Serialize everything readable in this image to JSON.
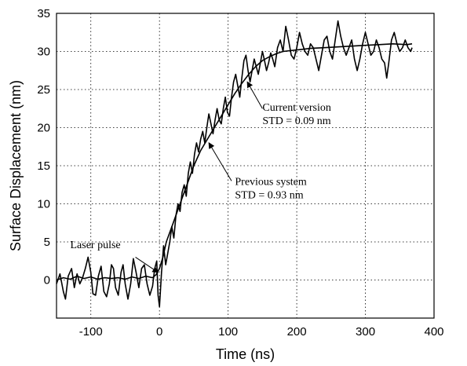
{
  "chart_data": {
    "type": "line",
    "title": "",
    "xlabel": "Time (ns)",
    "ylabel": "Surface Displacement (nm)",
    "xlim": [
      -150,
      400
    ],
    "ylim": [
      -5,
      35
    ],
    "xticks": [
      -100,
      0,
      100,
      200,
      300,
      400
    ],
    "yticks": [
      0,
      5,
      10,
      15,
      20,
      25,
      30,
      35
    ],
    "grid": true,
    "series": [
      {
        "values": [
          [
            -150,
            0
          ],
          [
            -140,
            0.3
          ],
          [
            -130,
            0.1
          ],
          [
            -120,
            0.5
          ],
          [
            -110,
            0.2
          ],
          [
            -100,
            0.4
          ],
          [
            -90,
            0.1
          ],
          [
            -80,
            0.3
          ],
          [
            -70,
            0.2
          ],
          [
            -60,
            0.3
          ],
          [
            -50,
            0.1
          ],
          [
            -40,
            0.4
          ],
          [
            -30,
            0.2
          ],
          [
            -20,
            0.5
          ],
          [
            -10,
            0.3
          ],
          [
            -5,
            0.7
          ],
          [
            0,
            1.5
          ],
          [
            5,
            3
          ],
          [
            10,
            5
          ],
          [
            20,
            7.5
          ],
          [
            30,
            10
          ],
          [
            40,
            12.5
          ],
          [
            50,
            15
          ],
          [
            60,
            17
          ],
          [
            70,
            18.5
          ],
          [
            80,
            20
          ],
          [
            90,
            21.5
          ],
          [
            100,
            23
          ],
          [
            110,
            24.5
          ],
          [
            120,
            25.8
          ],
          [
            130,
            27
          ],
          [
            140,
            28
          ],
          [
            150,
            28.8
          ],
          [
            160,
            29.3
          ],
          [
            170,
            29.7
          ],
          [
            180,
            30
          ],
          [
            200,
            30.2
          ],
          [
            220,
            30.4
          ],
          [
            240,
            30.5
          ],
          [
            260,
            30.6
          ],
          [
            280,
            30.7
          ],
          [
            300,
            30.8
          ],
          [
            320,
            30.9
          ],
          [
            340,
            31
          ],
          [
            360,
            30.9
          ],
          [
            368,
            31
          ]
        ]
      },
      {
        "values": [
          [
            -150,
            -0.5
          ],
          [
            -145,
            0.8
          ],
          [
            -140,
            -1.5
          ],
          [
            -137,
            -2.5
          ],
          [
            -133,
            0.5
          ],
          [
            -128,
            1.5
          ],
          [
            -124,
            -1.0
          ],
          [
            -120,
            0.8
          ],
          [
            -116,
            -0.5
          ],
          [
            -112,
            0.3
          ],
          [
            -108,
            1.5
          ],
          [
            -104,
            3.0
          ],
          [
            -100,
            1.0
          ],
          [
            -97,
            -1.8
          ],
          [
            -93,
            -2.0
          ],
          [
            -89,
            0.5
          ],
          [
            -85,
            1.8
          ],
          [
            -81,
            -1.5
          ],
          [
            -77,
            -2.2
          ],
          [
            -73,
            -0.5
          ],
          [
            -70,
            2.0
          ],
          [
            -67,
            1.5
          ],
          [
            -64,
            -1.0
          ],
          [
            -60,
            -2.0
          ],
          [
            -56,
            1.0
          ],
          [
            -53,
            2.0
          ],
          [
            -50,
            -0.5
          ],
          [
            -46,
            -2.5
          ],
          [
            -42,
            -0.5
          ],
          [
            -38,
            2.8
          ],
          [
            -34,
            1.0
          ],
          [
            -30,
            -1.0
          ],
          [
            -26,
            1.5
          ],
          [
            -22,
            2.0
          ],
          [
            -18,
            -0.5
          ],
          [
            -14,
            -2.0
          ],
          [
            -10,
            -0.8
          ],
          [
            -7,
            1.5
          ],
          [
            -4,
            2.5
          ],
          [
            -2,
            -2.0
          ],
          [
            0,
            -3.5
          ],
          [
            3,
            1.0
          ],
          [
            6,
            4.5
          ],
          [
            9,
            2.0
          ],
          [
            12,
            3.5
          ],
          [
            15,
            5.0
          ],
          [
            18,
            7.0
          ],
          [
            21,
            5.5
          ],
          [
            24,
            8.5
          ],
          [
            27,
            10.0
          ],
          [
            30,
            9.0
          ],
          [
            33,
            11.5
          ],
          [
            36,
            12.5
          ],
          [
            39,
            11.0
          ],
          [
            42,
            14.0
          ],
          [
            45,
            15.5
          ],
          [
            48,
            14.0
          ],
          [
            51,
            16.5
          ],
          [
            54,
            18.0
          ],
          [
            57,
            16.8
          ],
          [
            60,
            18.5
          ],
          [
            63,
            19.5
          ],
          [
            66,
            18.0
          ],
          [
            69,
            20.0
          ],
          [
            72,
            21.8
          ],
          [
            75,
            20.5
          ],
          [
            78,
            19.2
          ],
          [
            81,
            21.0
          ],
          [
            84,
            22.5
          ],
          [
            87,
            21.0
          ],
          [
            90,
            20.5
          ],
          [
            93,
            22.5
          ],
          [
            96,
            24.0
          ],
          [
            99,
            22.0
          ],
          [
            102,
            21.5
          ],
          [
            105,
            24.0
          ],
          [
            108,
            26.0
          ],
          [
            111,
            27.0
          ],
          [
            114,
            25.5
          ],
          [
            117,
            24.0
          ],
          [
            120,
            26.5
          ],
          [
            123,
            28.8
          ],
          [
            126,
            29.5
          ],
          [
            129,
            27.5
          ],
          [
            132,
            26.0
          ],
          [
            135,
            27.5
          ],
          [
            138,
            29.0
          ],
          [
            141,
            28.0
          ],
          [
            144,
            27.0
          ],
          [
            147,
            28.5
          ],
          [
            150,
            30.0
          ],
          [
            153,
            28.8
          ],
          [
            156,
            27.5
          ],
          [
            159,
            28.5
          ],
          [
            162,
            29.8
          ],
          [
            165,
            29.0
          ],
          [
            168,
            28.0
          ],
          [
            172,
            30.5
          ],
          [
            176,
            31.5
          ],
          [
            180,
            30.0
          ],
          [
            184,
            33.3
          ],
          [
            188,
            31.5
          ],
          [
            192,
            29.5
          ],
          [
            196,
            29.0
          ],
          [
            200,
            30.5
          ],
          [
            204,
            32.5
          ],
          [
            208,
            31.0
          ],
          [
            212,
            30.0
          ],
          [
            216,
            29.5
          ],
          [
            220,
            31.0
          ],
          [
            224,
            30.5
          ],
          [
            228,
            29.0
          ],
          [
            232,
            27.5
          ],
          [
            236,
            29.5
          ],
          [
            240,
            31.5
          ],
          [
            244,
            32.0
          ],
          [
            248,
            30.0
          ],
          [
            252,
            29.0
          ],
          [
            256,
            31.5
          ],
          [
            260,
            34.0
          ],
          [
            264,
            32.0
          ],
          [
            268,
            30.5
          ],
          [
            272,
            29.5
          ],
          [
            276,
            30.5
          ],
          [
            280,
            31.5
          ],
          [
            284,
            29.0
          ],
          [
            288,
            27.5
          ],
          [
            292,
            29.0
          ],
          [
            296,
            31.0
          ],
          [
            300,
            32.5
          ],
          [
            304,
            31.0
          ],
          [
            308,
            29.5
          ],
          [
            312,
            30.0
          ],
          [
            316,
            31.5
          ],
          [
            320,
            30.5
          ],
          [
            324,
            29.0
          ],
          [
            328,
            28.5
          ],
          [
            331,
            26.5
          ],
          [
            334,
            28.5
          ],
          [
            338,
            31.5
          ],
          [
            342,
            32.5
          ],
          [
            346,
            31.0
          ],
          [
            350,
            30.0
          ],
          [
            354,
            30.5
          ],
          [
            358,
            31.5
          ],
          [
            362,
            30.5
          ],
          [
            366,
            30.0
          ],
          [
            368,
            30.5
          ]
        ]
      }
    ],
    "annotations": [
      {
        "lines": [
          "Laser pulse"
        ],
        "x": -130,
        "y": 4.2,
        "arrow_from": [
          -35,
          3.0
        ],
        "arrow_to": [
          -2,
          1.0
        ]
      },
      {
        "lines": [
          "Previous system",
          "STD = 0.93 nm"
        ],
        "x": 110,
        "y": 12.5,
        "arrow_from": [
          105,
          13.0
        ],
        "arrow_to": [
          72,
          18.0
        ]
      },
      {
        "lines": [
          "Current version",
          "STD = 0.09 nm"
        ],
        "x": 150,
        "y": 22.2,
        "arrow_from": [
          150,
          22.5
        ],
        "arrow_to": [
          128,
          26.0
        ]
      }
    ]
  }
}
